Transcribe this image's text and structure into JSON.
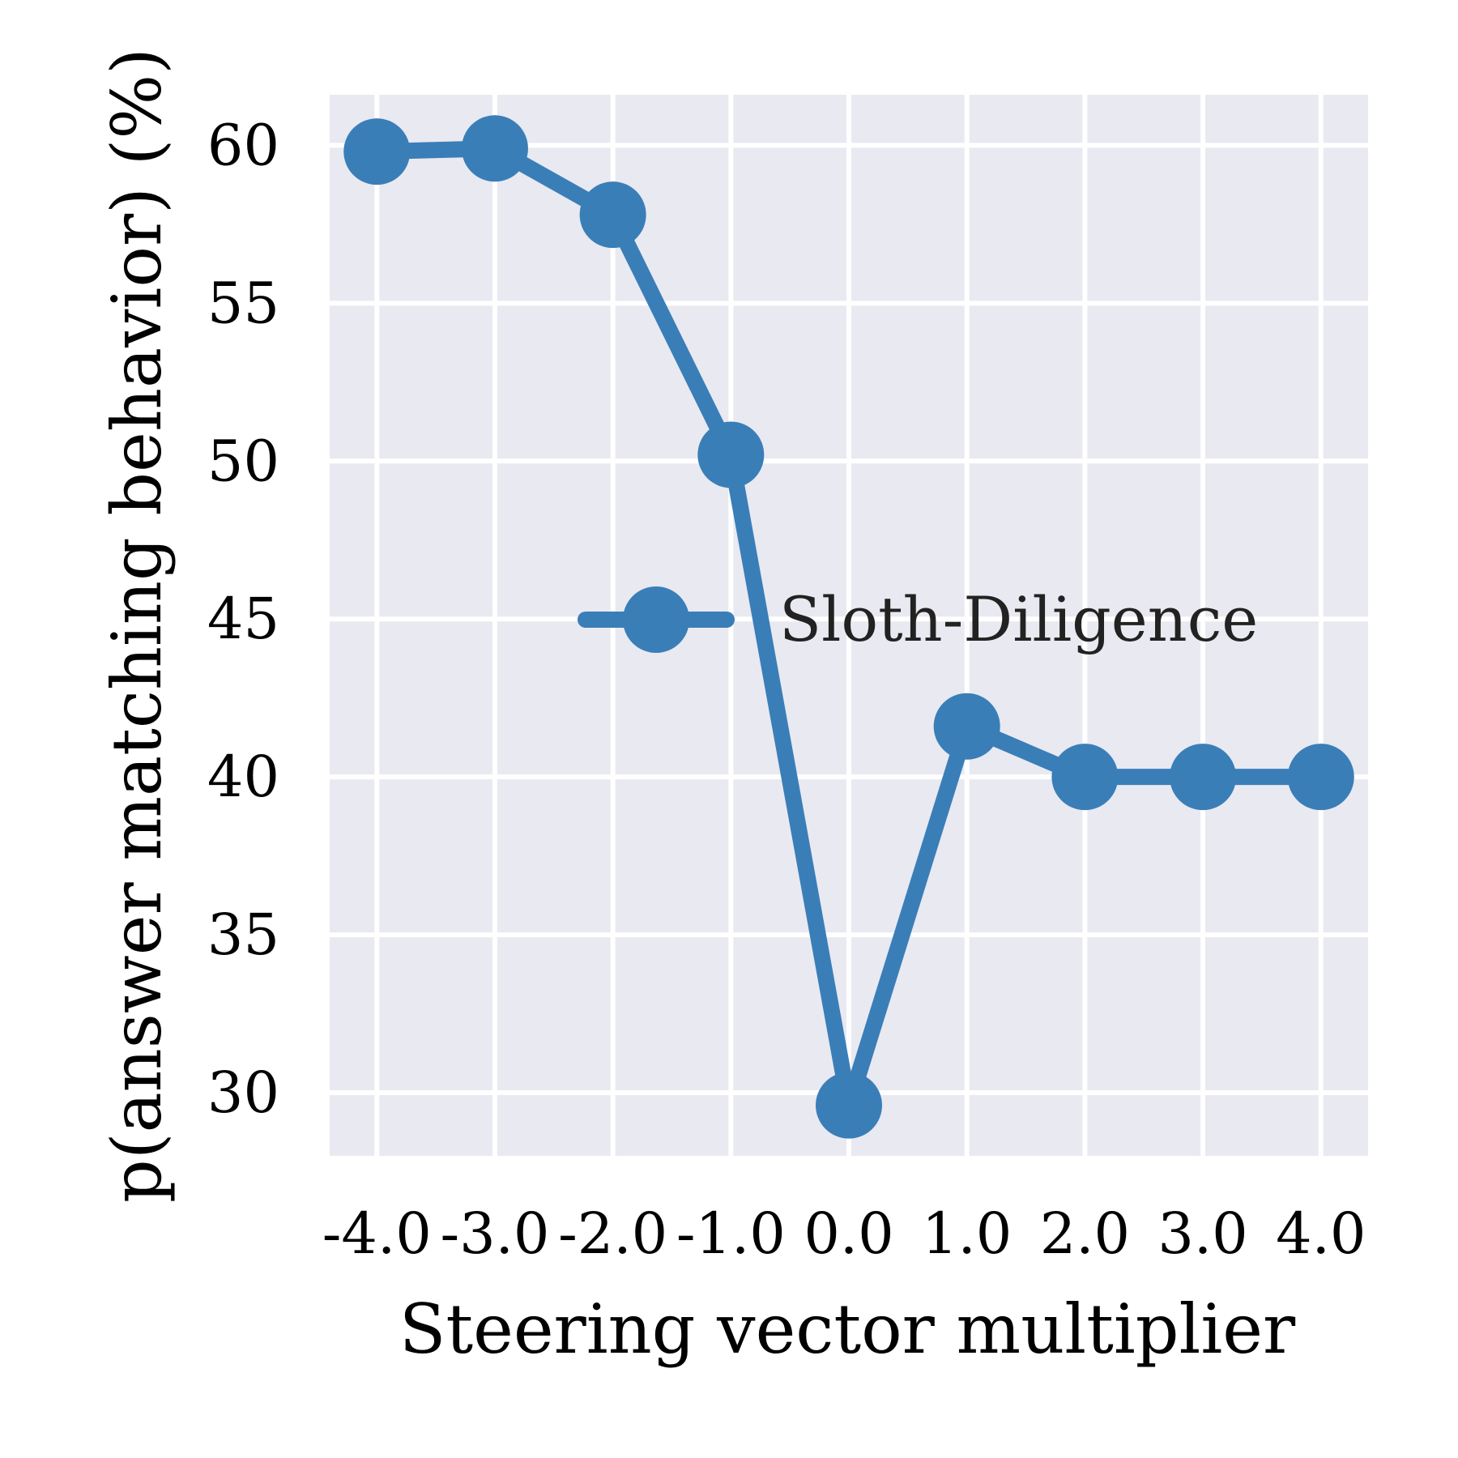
{
  "chart_data": {
    "type": "line",
    "title": "",
    "xlabel": "Steering vector multiplier",
    "ylabel": "p(answer matching behavior) (%)",
    "x": [
      -4.0,
      -3.0,
      -2.0,
      -1.0,
      0.0,
      1.0,
      2.0,
      3.0,
      4.0
    ],
    "x_tick_labels": [
      "-4.0",
      "-3.0",
      "-2.0",
      "-1.0",
      "0.0",
      "1.0",
      "2.0",
      "3.0",
      "4.0"
    ],
    "y_ticks": [
      30,
      35,
      40,
      45,
      50,
      55,
      60
    ],
    "y_tick_labels": [
      "30",
      "35",
      "40",
      "45",
      "50",
      "55",
      "60"
    ],
    "xlim": [
      -4.4,
      4.4
    ],
    "ylim": [
      28.0,
      61.6
    ],
    "grid": true,
    "legend_position": "center-right",
    "series": [
      {
        "name": "Sloth-Diligence",
        "color": "#3a7eb8",
        "values": [
          59.8,
          59.9,
          57.8,
          50.2,
          29.6,
          41.6,
          40.0,
          40.0,
          40.0
        ]
      }
    ],
    "background_color": "#e9e9f1",
    "grid_color": "#ffffff"
  }
}
